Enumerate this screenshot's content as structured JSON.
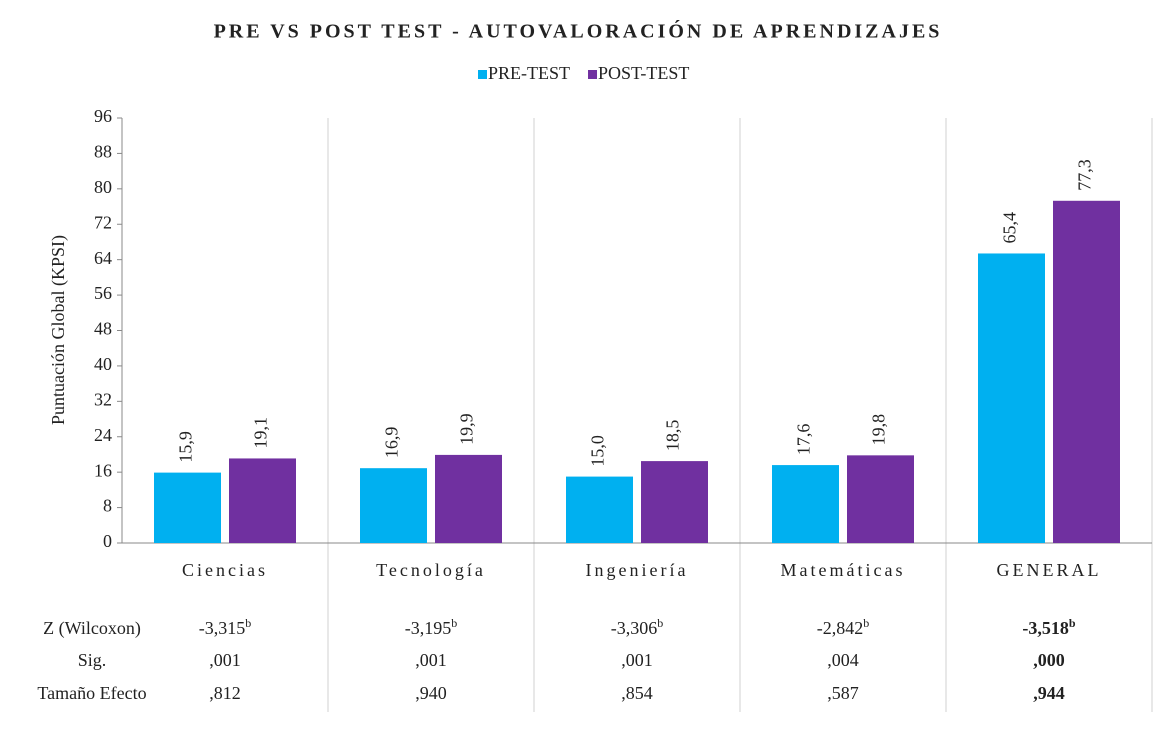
{
  "chart_data": {
    "type": "bar",
    "title": "PRE VS POST TEST - AUTOVALORACIÓN DE APRENDIZAJES",
    "y_label": "Puntuación Global (KPSI)",
    "categories": [
      "Ciencias",
      "Tecnología",
      "Ingeniería",
      "Matemáticas",
      "GENERAL"
    ],
    "series": [
      {
        "name": "PRE-TEST",
        "color": "#00b0f0",
        "values": [
          15.9,
          16.9,
          15.0,
          17.6,
          65.4
        ],
        "value_labels": [
          "15,9",
          "16,9",
          "15,0",
          "17,6",
          "65,4"
        ]
      },
      {
        "name": "POST-TEST",
        "color": "#7030a0",
        "values": [
          19.1,
          19.9,
          18.5,
          19.8,
          77.3
        ],
        "value_labels": [
          "19,1",
          "19,9",
          "18,5",
          "19,8",
          "77,3"
        ]
      }
    ],
    "ylim": [
      0,
      96
    ],
    "yticks": [
      0,
      8,
      16,
      24,
      32,
      40,
      48,
      56,
      64,
      72,
      80,
      88,
      96
    ],
    "grid": false,
    "legend": "top"
  },
  "table": {
    "rows": [
      {
        "label": "Z (Wilcoxon)",
        "cells": [
          {
            "text": "-3,315",
            "sup": "b"
          },
          {
            "text": "-3,195",
            "sup": "b"
          },
          {
            "text": "-3,306",
            "sup": "b"
          },
          {
            "text": "-2,842",
            "sup": "b"
          },
          {
            "text": "-3,518",
            "sup": "b"
          }
        ]
      },
      {
        "label": "Sig.",
        "cells": [
          ",001",
          ",001",
          ",001",
          ",004",
          ",000"
        ]
      },
      {
        "label": "Tamaño Efecto",
        "cells": [
          ",812",
          ",940",
          ",854",
          ",587",
          ",944"
        ]
      }
    ]
  }
}
